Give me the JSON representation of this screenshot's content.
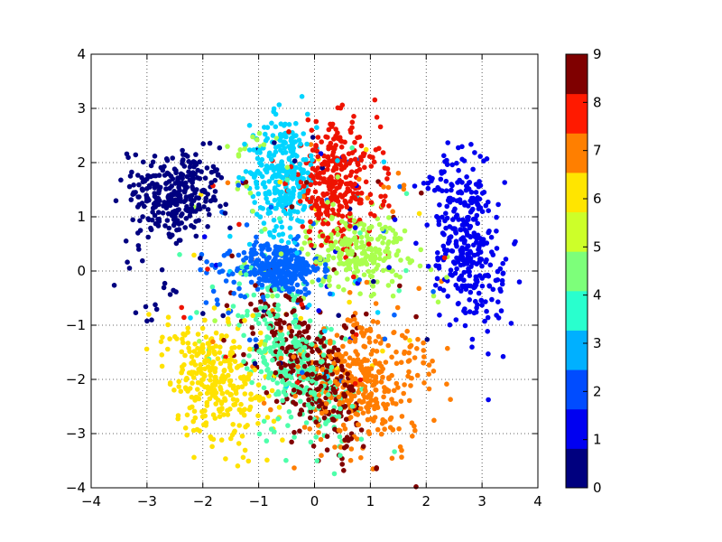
{
  "chart_data": {
    "type": "scatter",
    "title": "",
    "xlabel": "",
    "ylabel": "",
    "xlim": [
      -4,
      4
    ],
    "ylim": [
      -4,
      4
    ],
    "x_ticks": [
      "−4",
      "−3",
      "−2",
      "−1",
      "0",
      "1",
      "2",
      "3",
      "4"
    ],
    "y_ticks": [
      "−4",
      "−3",
      "−2",
      "−1",
      "0",
      "1",
      "2",
      "3",
      "4"
    ],
    "grid": true,
    "colorbar": {
      "range": [
        0,
        9
      ],
      "ticks": [
        "0",
        "1",
        "2",
        "3",
        "4",
        "5",
        "6",
        "7",
        "8",
        "9"
      ],
      "colors": [
        "#00007f",
        "#0000f1",
        "#004cff",
        "#00b0ff",
        "#29ffce",
        "#7dff7a",
        "#cdff29",
        "#ffe500",
        "#ff7f00",
        "#ff1a00",
        "#7f0000"
      ]
    },
    "point_color_map": {
      "0": "#000080",
      "1": "#0000ee",
      "2": "#0064ff",
      "3": "#00d4ff",
      "4": "#4dffaa",
      "5": "#aaff4d",
      "6": "#ffe200",
      "7": "#ff7d00",
      "8": "#ee1300",
      "9": "#800000"
    },
    "clusters": [
      {
        "class": 0,
        "center": [
          -2.5,
          1.4
        ],
        "spread": [
          0.4,
          0.45
        ],
        "angle": -15,
        "count": 300,
        "tail": [
          [
            -3.2,
            0.4
          ],
          [
            -3.0,
            -0.8
          ],
          [
            -2.6,
            -0.2
          ]
        ]
      },
      {
        "class": 1,
        "center": [
          2.75,
          0.5
        ],
        "spread": [
          0.28,
          0.75
        ],
        "angle": 10,
        "count": 330,
        "tail": [
          [
            2.3,
            1.8
          ],
          [
            2.6,
            2.1
          ]
        ]
      },
      {
        "class": 2,
        "center": [
          -0.65,
          0.05
        ],
        "spread": [
          0.38,
          0.24
        ],
        "angle": 0,
        "count": 320,
        "tail": [
          [
            -1.9,
            0.1
          ],
          [
            -1.6,
            -0.5
          ]
        ]
      },
      {
        "class": 3,
        "center": [
          -0.55,
          1.8
        ],
        "spread": [
          0.3,
          0.55
        ],
        "angle": 0,
        "count": 280,
        "tail": [
          [
            -0.9,
            2.6
          ]
        ]
      },
      {
        "class": 4,
        "center": [
          -0.35,
          -1.7
        ],
        "spread": [
          0.35,
          0.8
        ],
        "angle": 30,
        "count": 300,
        "tail": [
          [
            -0.9,
            -3.0
          ]
        ]
      },
      {
        "class": 5,
        "center": [
          0.75,
          0.4
        ],
        "spread": [
          0.45,
          0.35
        ],
        "angle": 0,
        "count": 230,
        "tail": [
          [
            -1.5,
            2.2
          ],
          [
            -1.3,
            1.5
          ],
          [
            -0.8,
            2.4
          ]
        ]
      },
      {
        "class": 6,
        "center": [
          -1.75,
          -2.0
        ],
        "spread": [
          0.4,
          0.6
        ],
        "angle": 30,
        "count": 300,
        "tail": [
          [
            -2.2,
            -2.8
          ]
        ]
      },
      {
        "class": 7,
        "center": [
          0.85,
          -2.1
        ],
        "spread": [
          0.55,
          0.6
        ],
        "angle": 20,
        "count": 340,
        "tail": [
          [
            1.6,
            -1.2
          ],
          [
            1.9,
            -1.7
          ]
        ]
      },
      {
        "class": 8,
        "center": [
          0.35,
          1.6
        ],
        "spread": [
          0.4,
          0.55
        ],
        "angle": 0,
        "count": 300,
        "tail": [
          [
            1.3,
            1.8
          ],
          [
            0.9,
            2.2
          ]
        ]
      },
      {
        "class": 9,
        "center": [
          -0.05,
          -1.9
        ],
        "spread": [
          0.35,
          0.8
        ],
        "angle": 30,
        "count": 290,
        "tail": [
          [
            0.6,
            -1.0
          ]
        ]
      }
    ]
  }
}
